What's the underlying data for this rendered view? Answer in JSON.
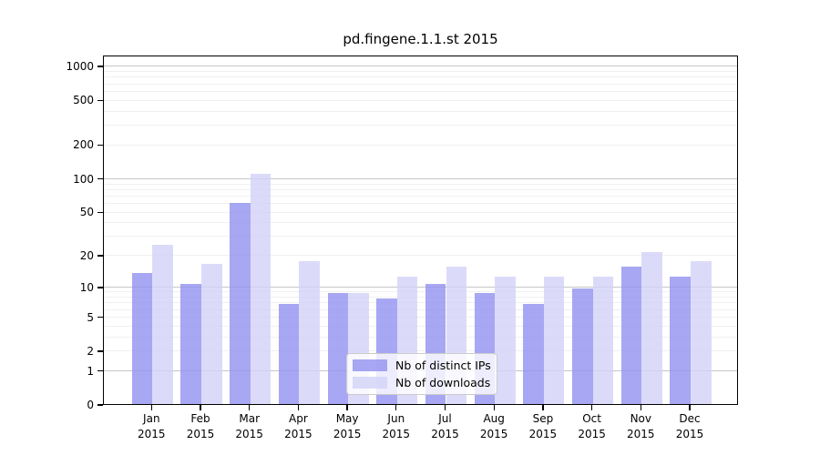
{
  "chart_data": {
    "type": "bar",
    "title": "pd.fingene.1.1.st 2015",
    "categories": [
      "Jan",
      "Feb",
      "Mar",
      "Apr",
      "May",
      "Jun",
      "Jul",
      "Aug",
      "Sep",
      "Oct",
      "Nov",
      "Dec"
    ],
    "year": "2015",
    "series": [
      {
        "name": "Nb of distinct IPs",
        "color": "#9191f0",
        "values": [
          14,
          11,
          62,
          7,
          9,
          8,
          11,
          9,
          7,
          10,
          16,
          13
        ]
      },
      {
        "name": "Nb of downloads",
        "color": "#d2d2f8",
        "values": [
          26,
          17,
          112,
          18,
          9,
          13,
          16,
          13,
          13,
          13,
          22,
          18
        ]
      }
    ],
    "yticks": [
      0,
      1,
      2,
      5,
      10,
      20,
      50,
      100,
      200,
      500,
      1000
    ],
    "ylim": [
      0,
      1000
    ],
    "scale": "log1p",
    "xlabel": "",
    "ylabel": "",
    "grid": true,
    "legend_position": "lower center",
    "colors": {
      "grid_major": "#c6c6c6",
      "grid_minor": "#f0f0f0",
      "axis": "#000000"
    }
  }
}
